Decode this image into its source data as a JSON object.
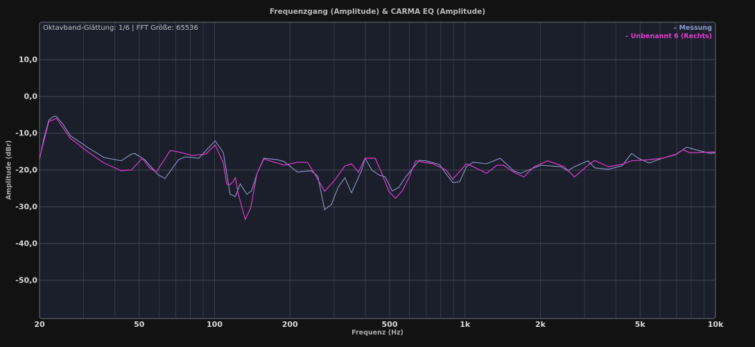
{
  "header": {
    "title": "Frequenzgang (Amplitude) & CARMA EQ (Amplitude)"
  },
  "info_text": "Oktavband-Glättung: 1/6 | FFT Größe: 65536",
  "legend": [
    {
      "label": "– Messung",
      "color": "#8d99c9"
    },
    {
      "label": "– Unbenannt 6 (Rechts)",
      "color": "#e03bd0"
    }
  ],
  "axes": {
    "xlabel": "Frequenz (Hz)",
    "ylabel": "Amplitude (dBr)",
    "y_ticks": [
      {
        "value": 10,
        "label": "10,0"
      },
      {
        "value": 0,
        "label": "0,0"
      },
      {
        "value": -10,
        "label": "-10,0"
      },
      {
        "value": -20,
        "label": "-20,0"
      },
      {
        "value": -30,
        "label": "-30,0"
      },
      {
        "value": -40,
        "label": "-40,0"
      },
      {
        "value": -50,
        "label": "-50,0"
      }
    ],
    "x_ticks": [
      {
        "value": 20,
        "label": "20"
      },
      {
        "value": 50,
        "label": "50"
      },
      {
        "value": 100,
        "label": "100"
      },
      {
        "value": 200,
        "label": "200"
      },
      {
        "value": 500,
        "label": "500"
      },
      {
        "value": 1000,
        "label": "1k"
      },
      {
        "value": 2000,
        "label": "2k"
      },
      {
        "value": 5000,
        "label": "5k"
      },
      {
        "value": 10000,
        "label": "10k"
      }
    ]
  },
  "colors": {
    "background": "#121212",
    "plot_bg": "#1a1f2b",
    "grid": "#3a3f4a",
    "frame": "#5a5d64",
    "measurement": "#8d99c9",
    "eq": "#e03bd0"
  },
  "chart_data": {
    "type": "line",
    "title": "Frequenzgang (Amplitude) & CARMA EQ (Amplitude)",
    "xlabel": "Frequenz (Hz)",
    "ylabel": "Amplitude (dBr)",
    "xscale": "log",
    "xlim": [
      20,
      10000
    ],
    "ylim": [
      -60.4,
      20.2
    ],
    "grid": true,
    "legend_position": "top-right",
    "series": [
      {
        "name": "Messung",
        "color": "#8d99c9",
        "points": [
          [
            20,
            -17.2
          ],
          [
            20.8,
            -11.5
          ],
          [
            21.8,
            -6.4
          ],
          [
            22.9,
            -5.3
          ],
          [
            23.4,
            -5.5
          ],
          [
            24.9,
            -7.7
          ],
          [
            26.5,
            -10.6
          ],
          [
            31.0,
            -13.8
          ],
          [
            36.2,
            -16.6
          ],
          [
            42.4,
            -17.5
          ],
          [
            46.5,
            -15.7
          ],
          [
            48.0,
            -15.5
          ],
          [
            52.6,
            -17.2
          ],
          [
            59.6,
            -21.3
          ],
          [
            63.4,
            -22.3
          ],
          [
            71.8,
            -17.2
          ],
          [
            76.4,
            -16.4
          ],
          [
            86.5,
            -16.8
          ],
          [
            95.0,
            -13.8
          ],
          [
            100.6,
            -12.1
          ],
          [
            108.4,
            -15.3
          ],
          [
            115.3,
            -26.6
          ],
          [
            121.1,
            -27.2
          ],
          [
            126.5,
            -23.8
          ],
          [
            134.6,
            -26.6
          ],
          [
            140.4,
            -25.7
          ],
          [
            147.7,
            -21.0
          ],
          [
            157.2,
            -16.8
          ],
          [
            178.0,
            -17.2
          ],
          [
            189.4,
            -17.7
          ],
          [
            214.4,
            -20.6
          ],
          [
            242.8,
            -20.2
          ],
          [
            258.3,
            -21.7
          ],
          [
            274.9,
            -30.8
          ],
          [
            292.5,
            -29.4
          ],
          [
            311.2,
            -24.7
          ],
          [
            331.2,
            -22.1
          ],
          [
            352.4,
            -26.2
          ],
          [
            386.7,
            -20.0
          ],
          [
            399.0,
            -16.8
          ],
          [
            424.6,
            -20.0
          ],
          [
            451.8,
            -21.3
          ],
          [
            480.7,
            -21.9
          ],
          [
            511.5,
            -25.7
          ],
          [
            544.3,
            -24.7
          ],
          [
            579.2,
            -21.9
          ],
          [
            655.7,
            -17.4
          ],
          [
            697.7,
            -17.5
          ],
          [
            790.0,
            -18.5
          ],
          [
            840.6,
            -21.0
          ],
          [
            894.4,
            -23.4
          ],
          [
            951.7,
            -23.2
          ],
          [
            1012.6,
            -19.1
          ],
          [
            1077.5,
            -17.9
          ],
          [
            1220.0,
            -18.3
          ],
          [
            1381.4,
            -16.8
          ],
          [
            1564.0,
            -20.2
          ],
          [
            1664.3,
            -20.9
          ],
          [
            2005.0,
            -18.7
          ],
          [
            2415.6,
            -19.1
          ],
          [
            2570.4,
            -20.2
          ],
          [
            2735.0,
            -19.1
          ],
          [
            3096.6,
            -17.5
          ],
          [
            3295.0,
            -19.4
          ],
          [
            3730.7,
            -19.8
          ],
          [
            4224.0,
            -18.9
          ],
          [
            4627.0,
            -15.5
          ],
          [
            4922.0,
            -16.8
          ],
          [
            5428.0,
            -18.1
          ],
          [
            6146.0,
            -16.8
          ],
          [
            6959.0,
            -15.8
          ],
          [
            7667.0,
            -13.8
          ],
          [
            8158.0,
            -14.3
          ],
          [
            9500.0,
            -15.5
          ],
          [
            10000.0,
            -15.3
          ]
        ]
      },
      {
        "name": "Unbenannt 6 (Rechts)",
        "color": "#e03bd0",
        "points": [
          [
            20,
            -16.8
          ],
          [
            21.8,
            -6.8
          ],
          [
            23.4,
            -6.0
          ],
          [
            26.5,
            -11.3
          ],
          [
            31.0,
            -14.9
          ],
          [
            36.2,
            -18.1
          ],
          [
            42.4,
            -20.2
          ],
          [
            46.5,
            -20.0
          ],
          [
            51.5,
            -16.8
          ],
          [
            55.0,
            -19.4
          ],
          [
            58.5,
            -20.6
          ],
          [
            66.5,
            -14.7
          ],
          [
            71.8,
            -15.1
          ],
          [
            81.3,
            -16.0
          ],
          [
            92.0,
            -15.7
          ],
          [
            100.6,
            -13.2
          ],
          [
            108.4,
            -18.1
          ],
          [
            111.8,
            -23.8
          ],
          [
            115.3,
            -24.0
          ],
          [
            118.5,
            -23.2
          ],
          [
            121.1,
            -22.1
          ],
          [
            124.4,
            -26.6
          ],
          [
            132.5,
            -33.4
          ],
          [
            139.3,
            -30.4
          ],
          [
            147.7,
            -21.0
          ],
          [
            157.2,
            -17.0
          ],
          [
            178.0,
            -18.1
          ],
          [
            189.4,
            -18.7
          ],
          [
            214.4,
            -17.9
          ],
          [
            235.1,
            -17.9
          ],
          [
            250.3,
            -20.9
          ],
          [
            274.9,
            -25.8
          ],
          [
            301.7,
            -22.8
          ],
          [
            331.2,
            -18.9
          ],
          [
            352.4,
            -18.3
          ],
          [
            375.0,
            -20.6
          ],
          [
            399.0,
            -16.8
          ],
          [
            437.7,
            -16.8
          ],
          [
            465.6,
            -20.9
          ],
          [
            495.3,
            -25.7
          ],
          [
            527.1,
            -27.7
          ],
          [
            561.0,
            -25.7
          ],
          [
            597.0,
            -22.1
          ],
          [
            635.2,
            -17.5
          ],
          [
            743.0,
            -18.3
          ],
          [
            840.6,
            -20.0
          ],
          [
            894.4,
            -22.5
          ],
          [
            1012.6,
            -18.3
          ],
          [
            1077.5,
            -19.1
          ],
          [
            1220.0,
            -20.9
          ],
          [
            1340.0,
            -18.7
          ],
          [
            1426.0,
            -18.7
          ],
          [
            1564.0,
            -20.6
          ],
          [
            1718.0,
            -21.9
          ],
          [
            1887.0,
            -19.1
          ],
          [
            2139.0,
            -17.5
          ],
          [
            2490.0,
            -19.1
          ],
          [
            2735.0,
            -21.9
          ],
          [
            3096.6,
            -18.7
          ],
          [
            3295.0,
            -17.4
          ],
          [
            3730.7,
            -19.1
          ],
          [
            4224.0,
            -18.5
          ],
          [
            4627.0,
            -17.5
          ],
          [
            5428.0,
            -17.2
          ],
          [
            6146.0,
            -16.8
          ],
          [
            6959.0,
            -15.7
          ],
          [
            7406.0,
            -14.5
          ],
          [
            7910.0,
            -15.3
          ],
          [
            10000.0,
            -15.1
          ]
        ]
      }
    ]
  }
}
